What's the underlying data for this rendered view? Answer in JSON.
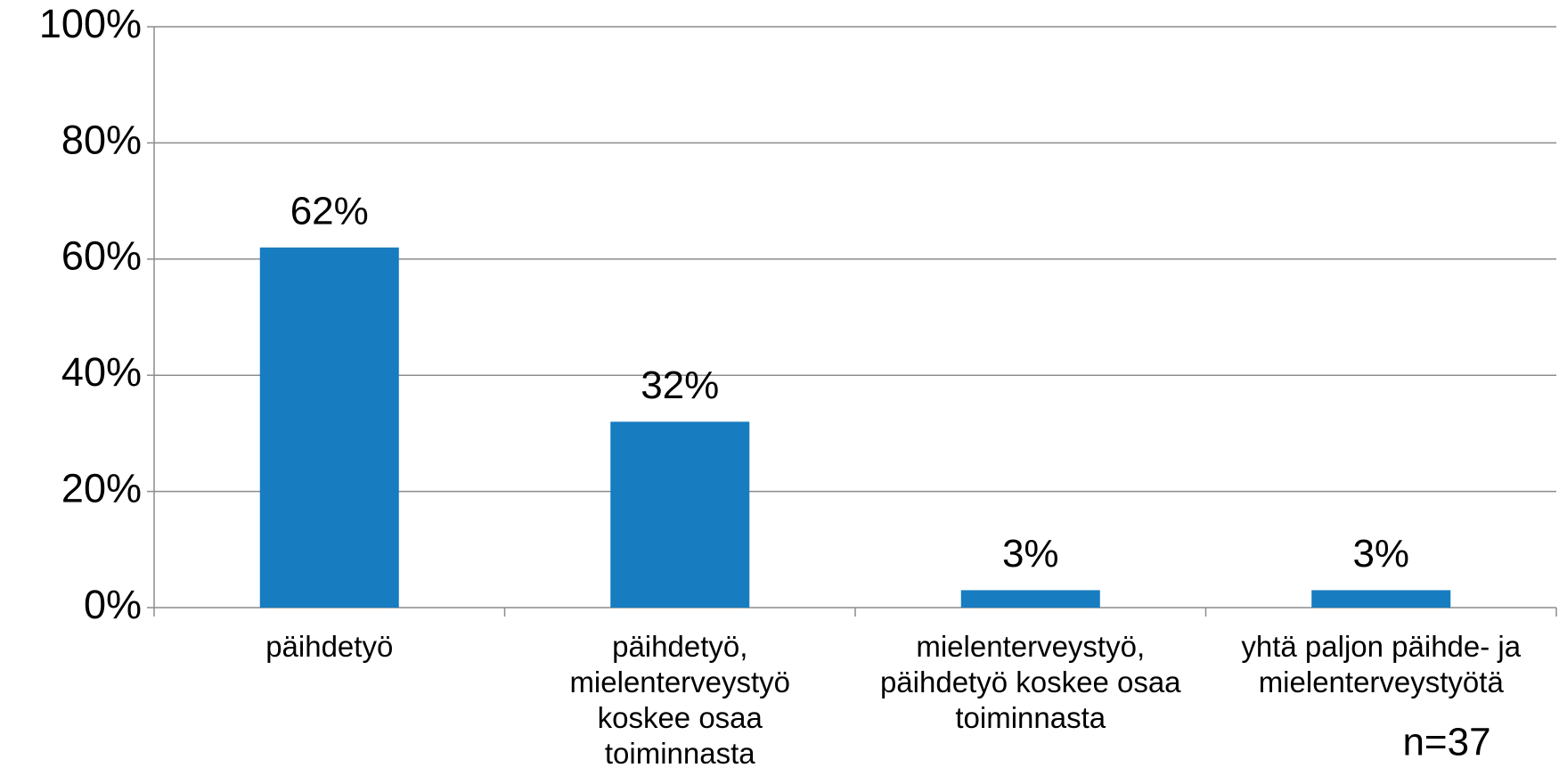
{
  "chart_data": {
    "type": "bar",
    "categories": [
      [
        "päihdetyö"
      ],
      [
        "päihdetyö,",
        "mielenterveystyö",
        "koskee osaa",
        "toiminnasta"
      ],
      [
        "mielenterveystyö,",
        "päihdetyö koskee osaa",
        "toiminnasta"
      ],
      [
        "yhtä paljon päihde- ja",
        "mielenterveystyötä"
      ]
    ],
    "values": [
      62,
      32,
      3,
      3
    ],
    "value_labels": [
      "62%",
      "32%",
      "3%",
      "3%"
    ],
    "color": "#177cc0",
    "ylim": [
      0,
      100
    ],
    "yticks": [
      {
        "value": 0,
        "label": "0%"
      },
      {
        "value": 20,
        "label": "20%"
      },
      {
        "value": 40,
        "label": "40%"
      },
      {
        "value": 60,
        "label": "60%"
      },
      {
        "value": 80,
        "label": "80%"
      },
      {
        "value": 100,
        "label": "100%"
      }
    ],
    "grid": true,
    "annotation": "n=37"
  }
}
